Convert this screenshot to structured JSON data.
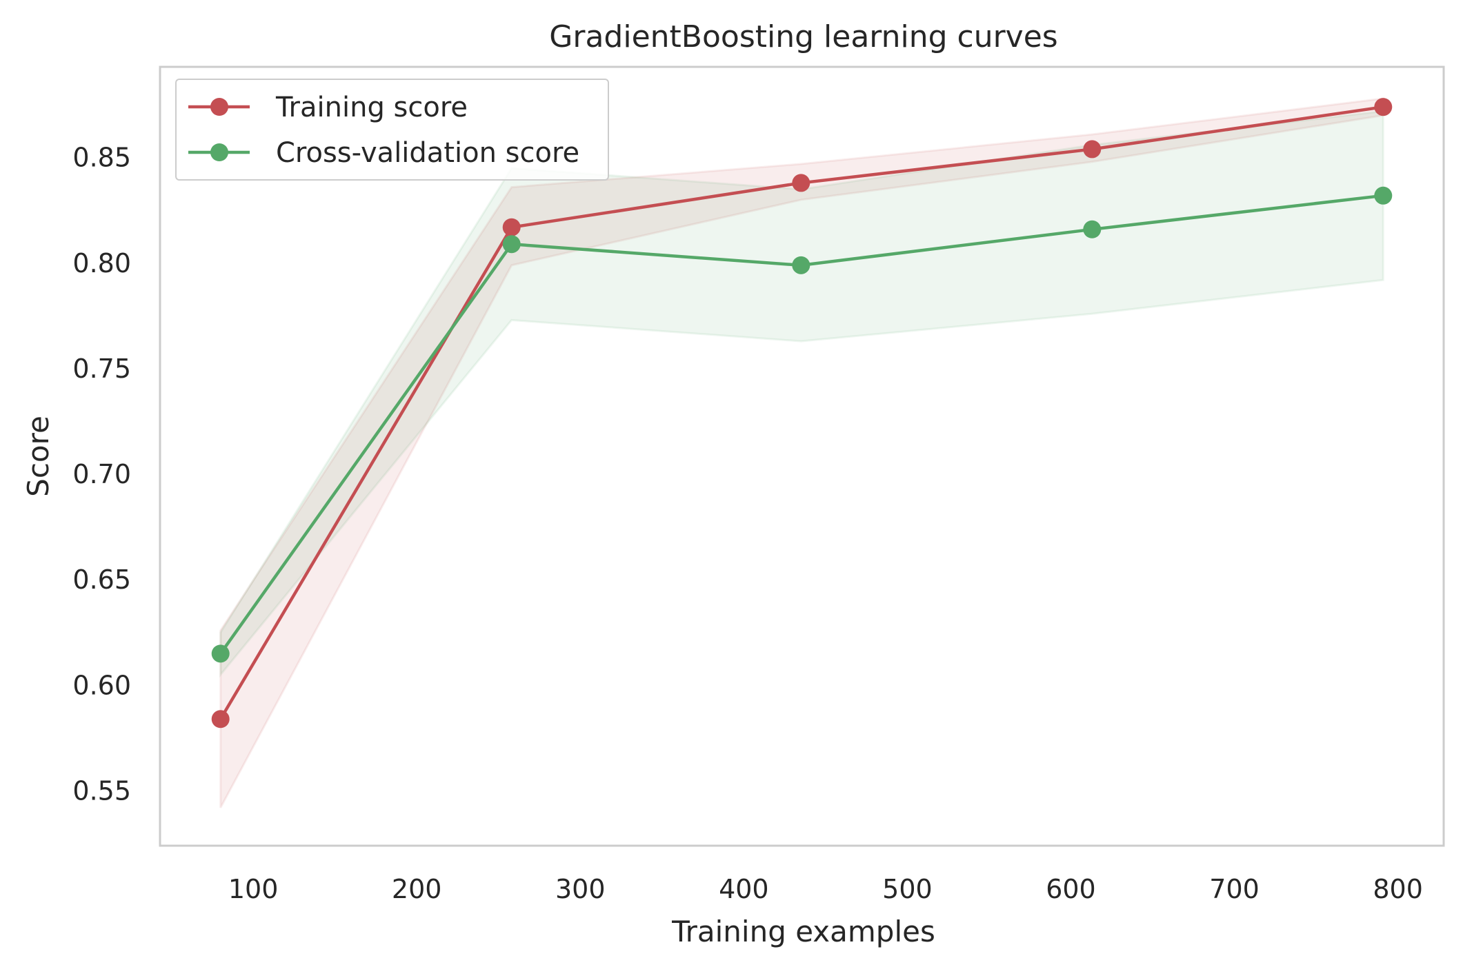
{
  "chart_data": {
    "type": "line",
    "title": "GradientBoosting learning curves",
    "xlabel": "Training examples",
    "ylabel": "Score",
    "xlim": [
      43,
      828
    ],
    "ylim": [
      0.524,
      0.893
    ],
    "xticks": [
      100,
      200,
      300,
      400,
      500,
      600,
      700,
      800
    ],
    "yticks": [
      0.55,
      0.6,
      0.65,
      0.7,
      0.75,
      0.8,
      0.85
    ],
    "grid": false,
    "legend_position": "top-left",
    "x": [
      80,
      258,
      435,
      613,
      791
    ],
    "series": [
      {
        "name": "Training score",
        "color": "#c44e52",
        "values": [
          0.584,
          0.817,
          0.838,
          0.854,
          0.874
        ],
        "band_low": [
          0.542,
          0.799,
          0.83,
          0.848,
          0.87
        ],
        "band_high": [
          0.626,
          0.836,
          0.847,
          0.861,
          0.878
        ]
      },
      {
        "name": "Cross-validation score",
        "color": "#55a868",
        "values": [
          0.615,
          0.809,
          0.799,
          0.816,
          0.832
        ],
        "band_low": [
          0.605,
          0.773,
          0.763,
          0.776,
          0.792
        ],
        "band_high": [
          0.625,
          0.845,
          0.835,
          0.856,
          0.872
        ]
      }
    ]
  }
}
